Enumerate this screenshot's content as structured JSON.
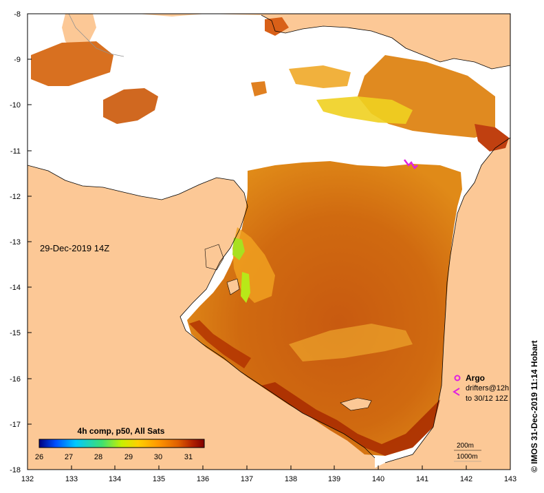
{
  "map": {
    "date_label": "29-Dec-2019 14Z",
    "credit": "© IMOS 31-Dec-2019 11:14 Hobart",
    "lon_ticks": [
      "132",
      "133",
      "134",
      "135",
      "136",
      "137",
      "138",
      "139",
      "140",
      "141",
      "142",
      "143"
    ],
    "lat_ticks": [
      "-8",
      "-9",
      "-10",
      "-11",
      "-12",
      "-13",
      "-14",
      "-15",
      "-16",
      "-17",
      "-18"
    ]
  },
  "colorbar": {
    "title": "4h comp, p50, All Sats",
    "ticks": [
      "26",
      "27",
      "28",
      "29",
      "30",
      "31"
    ],
    "colors": [
      "#000080",
      "#0050ff",
      "#00c8ff",
      "#40e070",
      "#c8f000",
      "#ffd000",
      "#ff9800",
      "#e06000",
      "#b02000",
      "#800000"
    ]
  },
  "legend": {
    "argo_label": "Argo",
    "drifters_label": "drifters@12h",
    "drifters_sub": "to 30/12 12Z",
    "argo_color": "#e020e0"
  },
  "contours": {
    "c200": "200m",
    "c1000": "1000m"
  },
  "colors": {
    "land": "#fcc896",
    "cloud": "#ffffff",
    "sst_warm": "#d06010",
    "sst_hot": "#a02800",
    "sst_cool": "#f0a020"
  }
}
